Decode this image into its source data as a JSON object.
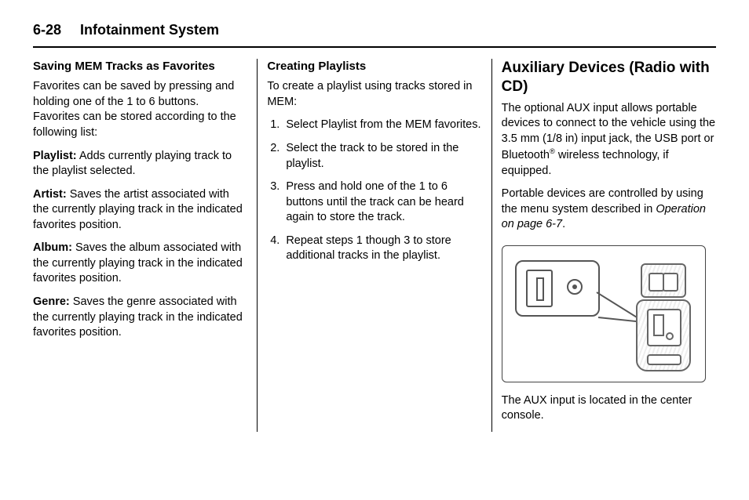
{
  "header": {
    "page_number": "6-28",
    "title": "Infotainment System"
  },
  "col1": {
    "subhead": "Saving MEM Tracks as Favorites",
    "intro": "Favorites can be saved by pressing and holding one of the 1 to 6 buttons. Favorites can be stored according to the following list:",
    "items": [
      {
        "term": "Playlist:",
        "desc": "Adds currently playing track to the playlist selected."
      },
      {
        "term": "Artist:",
        "desc": "Saves the artist associated with the currently playing track in the indicated favorites position."
      },
      {
        "term": "Album:",
        "desc": "Saves the album associated with the currently playing track in the indicated favorites position."
      },
      {
        "term": "Genre:",
        "desc": "Saves the genre associated with the currently playing track in the indicated favorites position."
      }
    ]
  },
  "col2": {
    "subhead": "Creating Playlists",
    "intro": "To create a playlist using tracks stored in MEM:",
    "steps": [
      "Select Playlist from the MEM favorites.",
      "Select the track to be stored in the playlist.",
      "Press and hold one of the 1 to 6 buttons until the track can be heard again to store the track.",
      "Repeat steps 1 though 3 to store additional tracks in the playlist."
    ]
  },
  "col3": {
    "section_head": "Auxiliary Devices (Radio with CD)",
    "p1_a": "The optional AUX input allows portable devices to connect to the vehicle using the 3.5 mm (1/8 in) input jack, the USB port or Bluetooth",
    "p1_sup": "®",
    "p1_b": " wireless technology, if equipped.",
    "p2_a": "Portable devices are controlled by using the menu system described in ",
    "p2_ref": "Operation on page 6-7",
    "p2_b": ".",
    "caption": "The AUX input is located in the center console."
  }
}
